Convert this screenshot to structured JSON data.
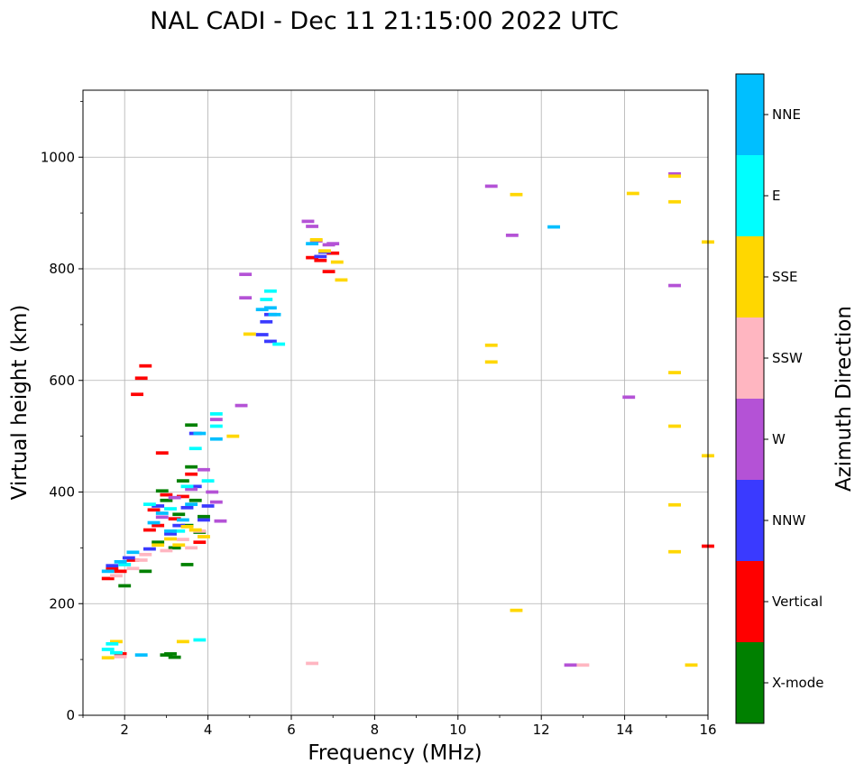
{
  "chart_data": {
    "type": "scatter",
    "title": "NAL CADI - Dec 11 21:15:00 2022 UTC",
    "xlabel": "Frequency (MHz)",
    "ylabel": "Virtual height (km)",
    "xlim": [
      1,
      16
    ],
    "ylim": [
      0,
      1120
    ],
    "xticks": [
      2,
      4,
      6,
      8,
      10,
      12,
      14,
      16
    ],
    "yticks": [
      0,
      200,
      400,
      600,
      800,
      1000
    ],
    "grid": true,
    "colorbar": {
      "label": "Azimuth Direction",
      "categories": [
        {
          "name": "X-mode",
          "color": "#008000"
        },
        {
          "name": "Vertical",
          "color": "#ff0000"
        },
        {
          "name": "NNW",
          "color": "#3a3aff"
        },
        {
          "name": "W",
          "color": "#b452d6"
        },
        {
          "name": "SSW",
          "color": "#ffb6c1"
        },
        {
          "name": "SSE",
          "color": "#ffd700"
        },
        {
          "name": "E",
          "color": "#00ffff"
        },
        {
          "name": "NNE",
          "color": "#00bfff"
        }
      ]
    },
    "series": [
      {
        "name": "X-mode",
        "points": [
          [
            2.0,
            232
          ],
          [
            2.5,
            258
          ],
          [
            2.8,
            310
          ],
          [
            2.9,
            402
          ],
          [
            3.0,
            108
          ],
          [
            3.1,
            110
          ],
          [
            3.2,
            300
          ],
          [
            3.3,
            360
          ],
          [
            3.4,
            420
          ],
          [
            3.5,
            340
          ],
          [
            3.6,
            445
          ],
          [
            3.7,
            385
          ],
          [
            3.8,
            328
          ],
          [
            3.9,
            356
          ],
          [
            3.5,
            270
          ],
          [
            3.6,
            520
          ],
          [
            3.2,
            104
          ],
          [
            3.0,
            385
          ]
        ]
      },
      {
        "name": "Vertical",
        "points": [
          [
            1.6,
            245
          ],
          [
            1.7,
            262
          ],
          [
            1.9,
            258
          ],
          [
            2.2,
            278
          ],
          [
            2.3,
            575
          ],
          [
            2.4,
            604
          ],
          [
            2.5,
            626
          ],
          [
            2.6,
            332
          ],
          [
            2.7,
            368
          ],
          [
            2.8,
            340
          ],
          [
            2.9,
            470
          ],
          [
            3.0,
            395
          ],
          [
            3.2,
            352
          ],
          [
            3.4,
            392
          ],
          [
            3.6,
            432
          ],
          [
            3.8,
            310
          ],
          [
            1.9,
            110
          ],
          [
            6.5,
            820
          ],
          [
            6.7,
            815
          ],
          [
            6.9,
            795
          ],
          [
            7.0,
            828
          ],
          [
            16.0,
            303
          ]
        ]
      },
      {
        "name": "NNW",
        "points": [
          [
            1.7,
            268
          ],
          [
            2.1,
            282
          ],
          [
            2.6,
            298
          ],
          [
            2.8,
            375
          ],
          [
            3.1,
            325
          ],
          [
            3.3,
            340
          ],
          [
            3.5,
            372
          ],
          [
            3.7,
            410
          ],
          [
            3.9,
            350
          ],
          [
            4.0,
            375
          ],
          [
            3.7,
            505
          ],
          [
            5.3,
            682
          ],
          [
            5.4,
            705
          ],
          [
            5.5,
            670
          ],
          [
            5.5,
            718
          ],
          [
            6.7,
            822
          ],
          [
            6.8,
            830
          ]
        ]
      },
      {
        "name": "W",
        "points": [
          [
            2.9,
            355
          ],
          [
            3.2,
            390
          ],
          [
            3.6,
            405
          ],
          [
            3.9,
            440
          ],
          [
            4.1,
            400
          ],
          [
            4.2,
            382
          ],
          [
            4.2,
            530
          ],
          [
            4.3,
            348
          ],
          [
            4.8,
            555
          ],
          [
            4.9,
            790
          ],
          [
            4.9,
            748
          ],
          [
            6.4,
            885
          ],
          [
            6.5,
            876
          ],
          [
            6.6,
            850
          ],
          [
            6.9,
            843
          ],
          [
            7.0,
            845
          ],
          [
            10.8,
            948
          ],
          [
            11.3,
            860
          ],
          [
            12.7,
            90
          ],
          [
            14.1,
            570
          ],
          [
            15.2,
            770
          ],
          [
            15.2,
            970
          ]
        ]
      },
      {
        "name": "SSW",
        "points": [
          [
            1.8,
            250
          ],
          [
            2.0,
            270
          ],
          [
            2.2,
            263
          ],
          [
            2.4,
            278
          ],
          [
            2.5,
            288
          ],
          [
            3.0,
            295
          ],
          [
            3.4,
            315
          ],
          [
            3.6,
            300
          ],
          [
            3.8,
            330
          ],
          [
            1.9,
            105
          ],
          [
            6.5,
            93
          ],
          [
            13.0,
            90
          ]
        ]
      },
      {
        "name": "SSE",
        "points": [
          [
            1.6,
            103
          ],
          [
            1.8,
            132
          ],
          [
            2.8,
            305
          ],
          [
            3.1,
            316
          ],
          [
            3.3,
            305
          ],
          [
            3.5,
            338
          ],
          [
            3.7,
            332
          ],
          [
            3.9,
            320
          ],
          [
            3.4,
            132
          ],
          [
            4.6,
            500
          ],
          [
            5.0,
            683
          ],
          [
            6.6,
            852
          ],
          [
            6.8,
            832
          ],
          [
            7.2,
            780
          ],
          [
            7.1,
            812
          ],
          [
            10.8,
            663
          ],
          [
            10.8,
            633
          ],
          [
            11.4,
            933
          ],
          [
            11.4,
            188
          ],
          [
            14.2,
            935
          ],
          [
            15.2,
            920
          ],
          [
            15.2,
            966
          ],
          [
            15.2,
            614
          ],
          [
            15.2,
            518
          ],
          [
            15.2,
            377
          ],
          [
            15.2,
            293
          ],
          [
            15.6,
            90
          ],
          [
            16.0,
            848
          ],
          [
            16.0,
            465
          ]
        ]
      },
      {
        "name": "E",
        "points": [
          [
            1.6,
            118
          ],
          [
            1.7,
            128
          ],
          [
            1.8,
            112
          ],
          [
            2.0,
            270
          ],
          [
            2.6,
            378
          ],
          [
            3.1,
            370
          ],
          [
            3.3,
            330
          ],
          [
            3.5,
            410
          ],
          [
            3.7,
            478
          ],
          [
            3.8,
            135
          ],
          [
            4.0,
            420
          ],
          [
            4.2,
            518
          ],
          [
            4.2,
            540
          ],
          [
            5.4,
            745
          ],
          [
            5.5,
            760
          ],
          [
            5.7,
            665
          ]
        ]
      },
      {
        "name": "NNE",
        "points": [
          [
            1.6,
            258
          ],
          [
            1.9,
            275
          ],
          [
            2.2,
            292
          ],
          [
            2.4,
            108
          ],
          [
            2.7,
            345
          ],
          [
            2.9,
            362
          ],
          [
            3.1,
            330
          ],
          [
            3.4,
            350
          ],
          [
            3.6,
            378
          ],
          [
            3.8,
            505
          ],
          [
            4.2,
            495
          ],
          [
            5.3,
            727
          ],
          [
            5.5,
            730
          ],
          [
            5.6,
            718
          ],
          [
            6.5,
            845
          ],
          [
            12.3,
            875
          ]
        ]
      }
    ]
  }
}
